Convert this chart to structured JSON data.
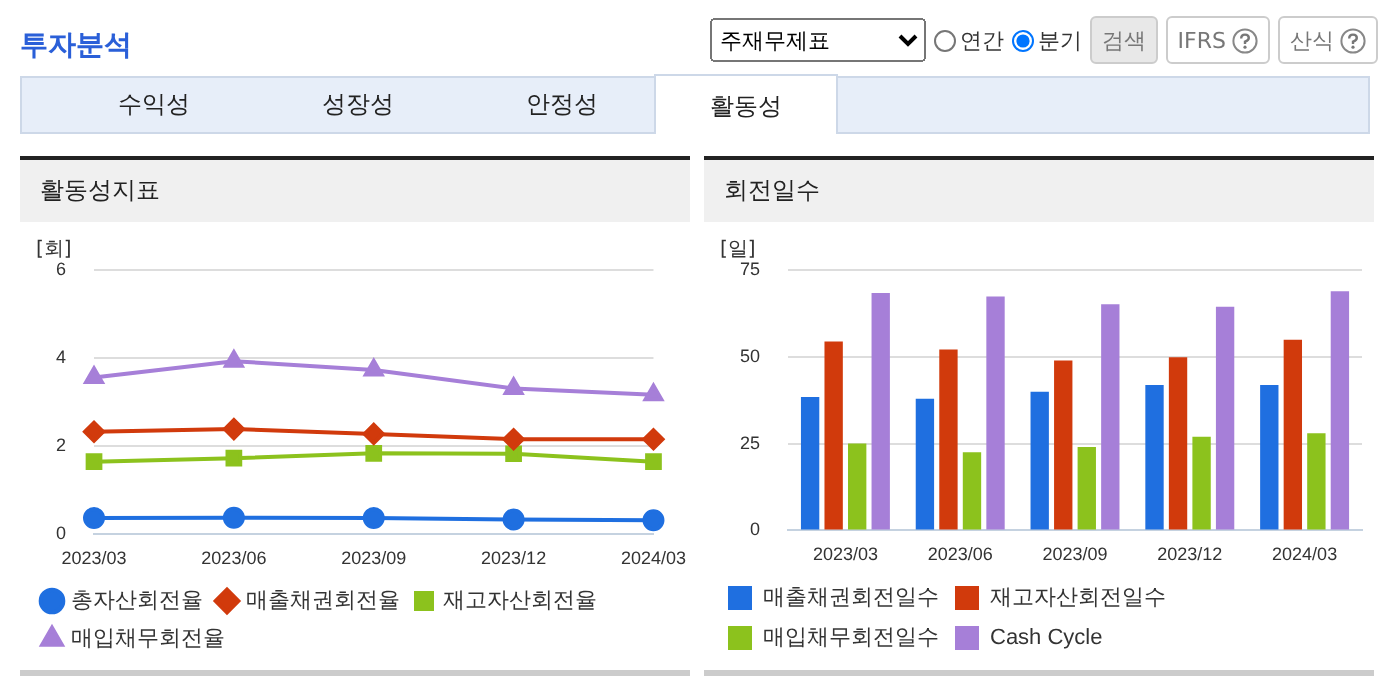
{
  "chart_data": [
    {
      "type": "other",
      "title": "투자분석",
      "annotations": [
        "주재무제표",
        "연간",
        "분기",
        "검색",
        "IFRS",
        "산식",
        "수익성",
        "성장성",
        "안정성",
        "활동성"
      ]
    },
    {
      "type": "line",
      "title": "활동성지표",
      "ylabel": "[회]",
      "categories": [
        "2023/03",
        "2023/06",
        "2023/09",
        "2023/12",
        "2024/03"
      ],
      "ylim": [
        0,
        6
      ],
      "yticks": [
        0,
        2,
        4,
        6
      ],
      "grid": "y",
      "legend": "bottom",
      "series": [
        {
          "name": "총자산회전율",
          "color": "#1f6fe0",
          "marker": "circle",
          "values": [
            0.37,
            0.38,
            0.37,
            0.34,
            0.32
          ]
        },
        {
          "name": "매출채권회전율",
          "color": "#d13a0c",
          "marker": "diamond",
          "values": [
            2.33,
            2.39,
            2.28,
            2.16,
            2.16
          ]
        },
        {
          "name": "재고자산회전율",
          "color": "#8cc21d",
          "marker": "square",
          "values": [
            1.65,
            1.73,
            1.84,
            1.83,
            1.65
          ]
        },
        {
          "name": "매입채무회전율",
          "color": "#a67fd8",
          "marker": "triangle",
          "values": [
            3.56,
            3.93,
            3.73,
            3.31,
            3.17
          ]
        }
      ]
    },
    {
      "type": "bar",
      "title": "회전일수",
      "ylabel": "[일]",
      "categories": [
        "2023/03",
        "2023/06",
        "2023/09",
        "2023/12",
        "2024/03"
      ],
      "ylim": [
        0,
        75
      ],
      "yticks": [
        0,
        25,
        50,
        75
      ],
      "grid": "y",
      "legend": "bottom",
      "series": [
        {
          "name": "매출채권회전일수",
          "color": "#1f6fe0",
          "values": [
            38.4,
            37.9,
            39.9,
            41.9,
            41.9
          ]
        },
        {
          "name": "재고자산회전일수",
          "color": "#d13a0c",
          "values": [
            54.4,
            52.1,
            48.9,
            49.9,
            54.9
          ]
        },
        {
          "name": "매입채무회전일수",
          "color": "#8cc21d",
          "values": [
            25,
            22.5,
            24,
            27,
            28
          ]
        },
        {
          "name": "Cash Cycle",
          "color": "#a67fd8",
          "values": [
            68.4,
            67.4,
            65.1,
            64.4,
            68.9
          ]
        }
      ]
    }
  ]
}
